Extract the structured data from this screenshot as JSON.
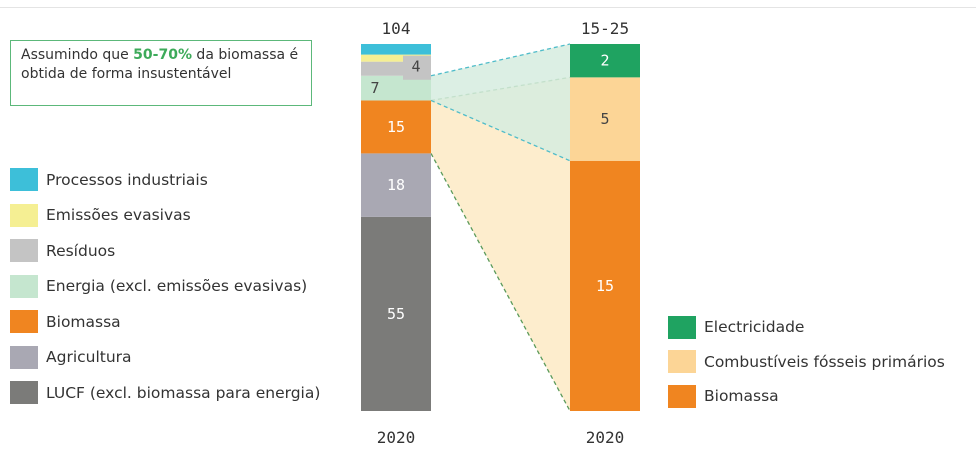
{
  "note": {
    "prefix": "Assumindo que ",
    "highlight": "50-70%",
    "suffix": " da biomassa é obtida de forma insustentável"
  },
  "chart_data": [
    {
      "type": "bar",
      "stacked": true,
      "categories": [
        "2020"
      ],
      "total_label": "104",
      "series": [
        {
          "name": "LUCF (excl. biomassa para energia)",
          "values": [
            55
          ],
          "color": "#7b7b79",
          "label": "55"
        },
        {
          "name": "Agricultura",
          "values": [
            18
          ],
          "color": "#a9a8b3",
          "label": "18"
        },
        {
          "name": "Biomassa",
          "values": [
            15
          ],
          "color": "#f08520",
          "label": "15"
        },
        {
          "name": "Energia (excl. emissões evasivas)",
          "values": [
            7
          ],
          "color": "#c5e6cf",
          "label": "7"
        },
        {
          "name": "Resíduos",
          "values": [
            4
          ],
          "color": "#c4c4c4",
          "label": "4"
        },
        {
          "name": "Emissões evasivas",
          "values": [
            2
          ],
          "color": "#f5ef93",
          "label": ""
        },
        {
          "name": "Processos industriais",
          "values": [
            3
          ],
          "color": "#3dbfd9",
          "label": ""
        }
      ]
    },
    {
      "type": "bar",
      "stacked": true,
      "categories": [
        "2020"
      ],
      "total_label": "15-25",
      "series": [
        {
          "name": "Biomassa",
          "values": [
            15
          ],
          "color": "#f08520",
          "label": "15"
        },
        {
          "name": "Combustíveis fósseis primários",
          "values": [
            5
          ],
          "color": "#fcd596",
          "label": "5"
        },
        {
          "name": "Electricidade",
          "values": [
            2
          ],
          "color": "#1fa361",
          "label": "2"
        }
      ]
    }
  ],
  "legend_left": [
    {
      "label": "Processos industriais",
      "color": "#3dbfd9"
    },
    {
      "label": "Emissões evasivas",
      "color": "#f5ef93"
    },
    {
      "label": "Resíduos",
      "color": "#c4c4c4"
    },
    {
      "label": "Energia (excl. emissões evasivas)",
      "color": "#c5e6cf"
    },
    {
      "label": "Biomassa",
      "color": "#f08520"
    },
    {
      "label": "Agricultura",
      "color": "#a9a8b3"
    },
    {
      "label": "LUCF (excl. biomassa para energia)",
      "color": "#7b7b79"
    }
  ],
  "legend_right": [
    {
      "label": "Electricidade",
      "color": "#1fa361"
    },
    {
      "label": "Combustíveis fósseis primários",
      "color": "#fcd596"
    },
    {
      "label": "Biomassa",
      "color": "#f08520"
    }
  ]
}
